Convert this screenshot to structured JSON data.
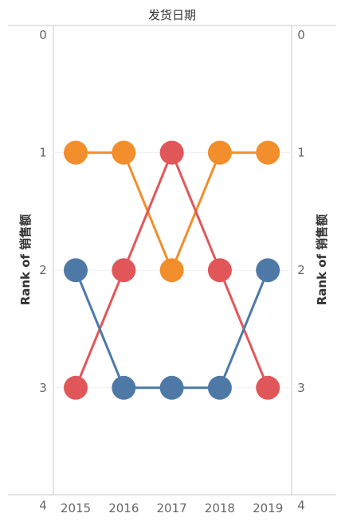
{
  "chart_data": {
    "type": "line",
    "title": "发货日期",
    "x": [
      "2015",
      "2016",
      "2017",
      "2018",
      "2019"
    ],
    "ylabel_left": "Rank of 销售额",
    "ylabel_right": "Rank of 销售额",
    "y_ticks": [
      "0",
      "1",
      "2",
      "3",
      "4"
    ],
    "ylim": [
      0,
      4
    ],
    "y_reversed": true,
    "grid": true,
    "marker": "circle",
    "series": [
      {
        "color": "#F28E2B",
        "values": [
          1,
          1,
          2,
          1,
          1
        ]
      },
      {
        "color": "#E15759",
        "values": [
          3,
          2,
          1,
          2,
          3
        ]
      },
      {
        "color": "#4E79A7",
        "values": [
          2,
          3,
          3,
          3,
          2
        ]
      }
    ]
  }
}
